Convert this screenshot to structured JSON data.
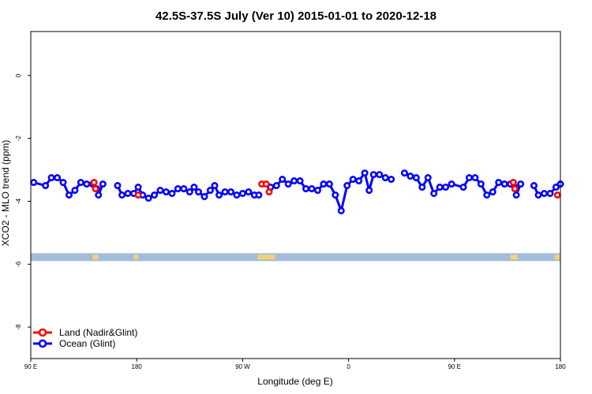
{
  "chart_data": {
    "type": "line",
    "title": "42.5S-37.5S July (Ver 10)   2015-01-01 to 2020-12-18",
    "xlabel": "Longitude (deg E)",
    "ylabel": "XCO2 - MLO trend (ppm)",
    "xlim": [
      90,
      450
    ],
    "ylim": [
      -9.0,
      1.4
    ],
    "x_ticks": [
      {
        "value": 90,
        "label": "90 E"
      },
      {
        "value": 162,
        "label": "180"
      },
      {
        "value": 234,
        "label": "90 W"
      },
      {
        "value": 306,
        "label": "0"
      },
      {
        "value": 378,
        "label": "90 E"
      },
      {
        "value": 450,
        "label": "180"
      }
    ],
    "y_ticks": [
      {
        "value": 0,
        "label": "0"
      },
      {
        "value": -2,
        "label": "-2"
      },
      {
        "value": -4,
        "label": "-4"
      },
      {
        "value": -6,
        "label": "-6"
      },
      {
        "value": -8,
        "label": "-8"
      }
    ],
    "grid": false,
    "legend_position": "bottom-left",
    "series": [
      {
        "name": "Ocean (Glint)",
        "color": "#0000ff",
        "segments": [
          [
            [
              92,
              -3.4
            ],
            [
              100,
              -3.5
            ],
            [
              104,
              -3.25
            ],
            [
              108,
              -3.25
            ],
            [
              112,
              -3.4
            ],
            [
              116,
              -3.8
            ],
            [
              120,
              -3.65
            ],
            [
              124,
              -3.4
            ],
            [
              128,
              -3.45
            ],
            [
              132,
              -3.45
            ],
            [
              135,
              -3.6
            ],
            [
              136,
              -3.8
            ],
            [
              139,
              -3.45
            ]
          ],
          [
            [
              149,
              -3.5
            ],
            [
              152,
              -3.8
            ],
            [
              156,
              -3.75
            ],
            [
              160,
              -3.75
            ],
            [
              163,
              -3.55
            ],
            [
              166,
              -3.8
            ],
            [
              170,
              -3.9
            ],
            [
              174,
              -3.8
            ],
            [
              178,
              -3.65
            ],
            [
              182,
              -3.7
            ],
            [
              186,
              -3.75
            ],
            [
              190,
              -3.6
            ],
            [
              194,
              -3.6
            ],
            [
              198,
              -3.7
            ],
            [
              201,
              -3.55
            ],
            [
              204,
              -3.7
            ],
            [
              208,
              -3.85
            ],
            [
              212,
              -3.65
            ],
            [
              215,
              -3.5
            ],
            [
              218,
              -3.8
            ],
            [
              222,
              -3.7
            ],
            [
              226,
              -3.7
            ],
            [
              230,
              -3.8
            ],
            [
              234,
              -3.75
            ],
            [
              238,
              -3.7
            ],
            [
              242,
              -3.8
            ],
            [
              245,
              -3.8
            ]
          ],
          [
            [
              253,
              -3.55
            ],
            [
              257,
              -3.5
            ],
            [
              261,
              -3.3
            ],
            [
              265,
              -3.45
            ],
            [
              269,
              -3.35
            ],
            [
              273,
              -3.35
            ],
            [
              277,
              -3.6
            ],
            [
              281,
              -3.6
            ],
            [
              285,
              -3.65
            ],
            [
              289,
              -3.45
            ],
            [
              293,
              -3.45
            ],
            [
              297,
              -3.8
            ],
            [
              301,
              -4.3
            ],
            [
              305,
              -3.5
            ],
            [
              309,
              -3.3
            ],
            [
              313,
              -3.35
            ],
            [
              317,
              -3.1
            ],
            [
              320,
              -3.65
            ],
            [
              323,
              -3.15
            ],
            [
              327,
              -3.15
            ],
            [
              331,
              -3.25
            ],
            [
              335,
              -3.3
            ]
          ],
          [
            [
              344,
              -3.1
            ],
            [
              348,
              -3.2
            ],
            [
              352,
              -3.25
            ],
            [
              356,
              -3.55
            ],
            [
              360,
              -3.25
            ],
            [
              364,
              -3.75
            ],
            [
              368,
              -3.55
            ],
            [
              372,
              -3.55
            ],
            [
              376,
              -3.45
            ],
            [
              384,
              -3.55
            ],
            [
              388,
              -3.25
            ],
            [
              392,
              -3.25
            ],
            [
              396,
              -3.45
            ],
            [
              400,
              -3.8
            ],
            [
              404,
              -3.7
            ],
            [
              408,
              -3.4
            ],
            [
              412,
              -3.45
            ],
            [
              416,
              -3.45
            ],
            [
              419,
              -3.55
            ],
            [
              420,
              -3.8
            ],
            [
              423,
              -3.45
            ]
          ],
          [
            [
              432,
              -3.5
            ],
            [
              435,
              -3.8
            ],
            [
              439,
              -3.75
            ],
            [
              443,
              -3.75
            ],
            [
              447,
              -3.55
            ],
            [
              450,
              -3.45
            ]
          ]
        ]
      },
      {
        "name": "Land (Nadir&Glint)",
        "color": "#ff0000",
        "segments": [
          [
            [
              133,
              -3.4
            ]
          ],
          [
            [
              134,
              -3.6
            ]
          ],
          [
            [
              163,
              -3.8
            ]
          ],
          [
            [
              247,
              -3.45
            ]
          ],
          [
            [
              250,
              -3.45
            ]
          ],
          [
            [
              252,
              -3.7
            ]
          ],
          [
            [
              418,
              -3.4
            ]
          ],
          [
            [
              419,
              -3.6
            ]
          ],
          [
            [
              448,
              -3.8
            ]
          ]
        ]
      }
    ],
    "band": {
      "y_range": [
        -5.9,
        -5.65
      ],
      "color": "#a4bcdc",
      "land_color": "#f4d27a",
      "land_x": [
        [
          132,
          136
        ],
        [
          160,
          163
        ],
        [
          244,
          256
        ],
        [
          416,
          421
        ],
        [
          446,
          450
        ]
      ]
    }
  }
}
